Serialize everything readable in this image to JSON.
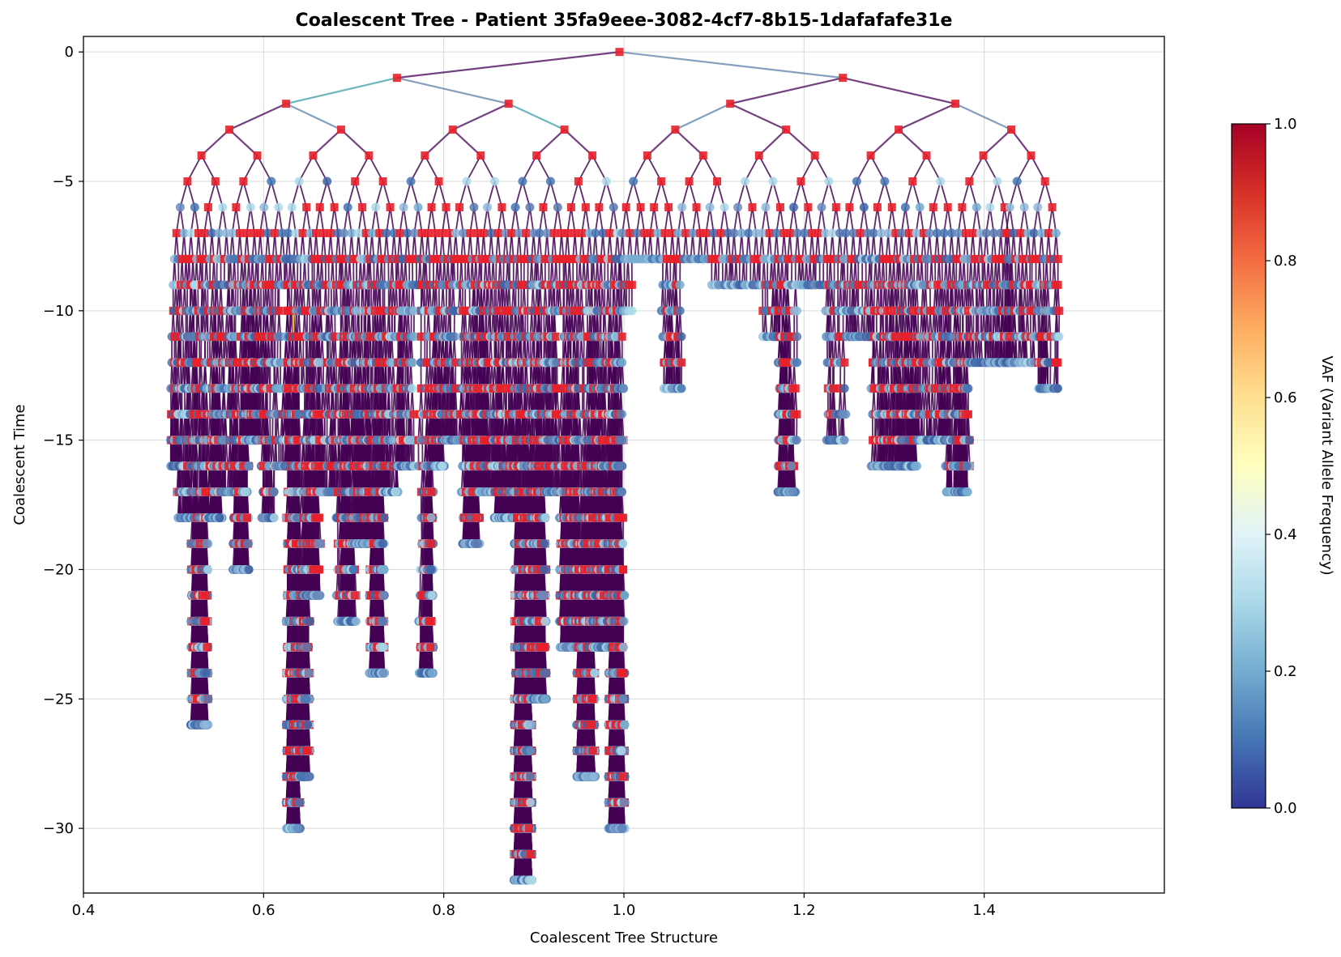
{
  "chart_data": {
    "type": "scatter",
    "title": "Coalescent Tree - Patient 35fa9eee-3082-4cf7-8b15-1dafafafe31e",
    "xlabel": "Coalescent Tree Structure",
    "ylabel": "Coalescent Time",
    "xlim": [
      0.4,
      1.6
    ],
    "ylim": [
      -32.5,
      0.6
    ],
    "x_ticks": [
      0.4,
      0.6,
      0.8,
      1.0,
      1.2,
      1.4
    ],
    "x_tick_labels": [
      "0.4",
      "0.6",
      "0.8",
      "1.0",
      "1.2",
      "1.4"
    ],
    "y_ticks": [
      0,
      -5,
      -10,
      -15,
      -20,
      -25,
      -30
    ],
    "y_tick_labels": [
      "0",
      "−5",
      "−10",
      "−15",
      "−20",
      "−25",
      "−30"
    ],
    "grid": true,
    "colorbar": {
      "label": "VAF (Variant Allele Frequency)",
      "colormap": "RdYlBu_r",
      "range": [
        0.0,
        1.0
      ],
      "ticks": [
        0.0,
        0.2,
        0.4,
        0.6,
        0.8,
        1.0
      ],
      "tick_labels": [
        "0.0",
        "0.2",
        "0.4",
        "0.6",
        "0.8",
        "1.0"
      ]
    },
    "internal_nodes": [
      {
        "x": 0.995,
        "y": 0
      },
      {
        "x": 0.748,
        "y": -1
      },
      {
        "x": 1.243,
        "y": -1
      },
      {
        "x": 0.625,
        "y": -2
      },
      {
        "x": 0.872,
        "y": -2
      },
      {
        "x": 1.118,
        "y": -2
      },
      {
        "x": 1.368,
        "y": -2
      },
      {
        "x": 0.562,
        "y": -3
      },
      {
        "x": 0.686,
        "y": -3
      },
      {
        "x": 0.81,
        "y": -3
      },
      {
        "x": 0.934,
        "y": -3
      },
      {
        "x": 1.057,
        "y": -3
      },
      {
        "x": 1.18,
        "y": -3
      },
      {
        "x": 1.305,
        "y": -3
      },
      {
        "x": 1.43,
        "y": -3
      },
      {
        "x": 0.531,
        "y": -4
      },
      {
        "x": 0.593,
        "y": -4
      },
      {
        "x": 0.655,
        "y": -4
      },
      {
        "x": 0.717,
        "y": -4
      },
      {
        "x": 0.779,
        "y": -4
      },
      {
        "x": 0.841,
        "y": -4
      },
      {
        "x": 0.903,
        "y": -4
      },
      {
        "x": 0.965,
        "y": -4
      },
      {
        "x": 1.026,
        "y": -4
      },
      {
        "x": 1.088,
        "y": -4
      },
      {
        "x": 1.15,
        "y": -4
      },
      {
        "x": 1.212,
        "y": -4
      },
      {
        "x": 1.274,
        "y": -4
      },
      {
        "x": 1.336,
        "y": -4
      },
      {
        "x": 1.399,
        "y": -4
      },
      {
        "x": 1.452,
        "y": -4
      }
    ],
    "leaf_depth_profile": [
      {
        "x": 0.5,
        "min_y": -16
      },
      {
        "x": 0.51,
        "min_y": -18
      },
      {
        "x": 0.53,
        "min_y": -26
      },
      {
        "x": 0.545,
        "min_y": -18
      },
      {
        "x": 0.56,
        "min_y": -17
      },
      {
        "x": 0.575,
        "min_y": -20
      },
      {
        "x": 0.59,
        "min_y": -15
      },
      {
        "x": 0.607,
        "min_y": -18
      },
      {
        "x": 0.62,
        "min_y": -16
      },
      {
        "x": 0.633,
        "min_y": -30
      },
      {
        "x": 0.645,
        "min_y": -28
      },
      {
        "x": 0.655,
        "min_y": -21
      },
      {
        "x": 0.67,
        "min_y": -17
      },
      {
        "x": 0.693,
        "min_y": -22
      },
      {
        "x": 0.71,
        "min_y": -19
      },
      {
        "x": 0.727,
        "min_y": -24
      },
      {
        "x": 0.74,
        "min_y": -17
      },
      {
        "x": 0.76,
        "min_y": -16
      },
      {
        "x": 0.785,
        "min_y": -24
      },
      {
        "x": 0.79,
        "min_y": -16
      },
      {
        "x": 0.81,
        "min_y": -15
      },
      {
        "x": 0.832,
        "min_y": -19
      },
      {
        "x": 0.845,
        "min_y": -17
      },
      {
        "x": 0.87,
        "min_y": -18
      },
      {
        "x": 0.888,
        "min_y": -32
      },
      {
        "x": 0.905,
        "min_y": -25
      },
      {
        "x": 0.92,
        "min_y": -17
      },
      {
        "x": 0.94,
        "min_y": -23
      },
      {
        "x": 0.958,
        "min_y": -28
      },
      {
        "x": 0.975,
        "min_y": -23
      },
      {
        "x": 0.994,
        "min_y": -30
      },
      {
        "x": 1.005,
        "min_y": -10
      },
      {
        "x": 1.02,
        "min_y": -8
      },
      {
        "x": 1.057,
        "min_y": -13
      },
      {
        "x": 1.08,
        "min_y": -8
      },
      {
        "x": 1.11,
        "min_y": -9
      },
      {
        "x": 1.14,
        "min_y": -9
      },
      {
        "x": 1.163,
        "min_y": -11
      },
      {
        "x": 1.181,
        "min_y": -17
      },
      {
        "x": 1.21,
        "min_y": -9
      },
      {
        "x": 1.24,
        "min_y": -15
      },
      {
        "x": 1.25,
        "min_y": -11
      },
      {
        "x": 1.3,
        "min_y": -16
      },
      {
        "x": 1.35,
        "min_y": -15
      },
      {
        "x": 1.367,
        "min_y": -17
      },
      {
        "x": 1.4,
        "min_y": -12
      },
      {
        "x": 1.433,
        "min_y": -12
      },
      {
        "x": 1.48,
        "min_y": -13
      },
      {
        "x": 1.495,
        "min_y": -11
      }
    ],
    "highlighted_edge": {
      "x": 0.633,
      "y_from": -10,
      "y_to": -11
    }
  }
}
